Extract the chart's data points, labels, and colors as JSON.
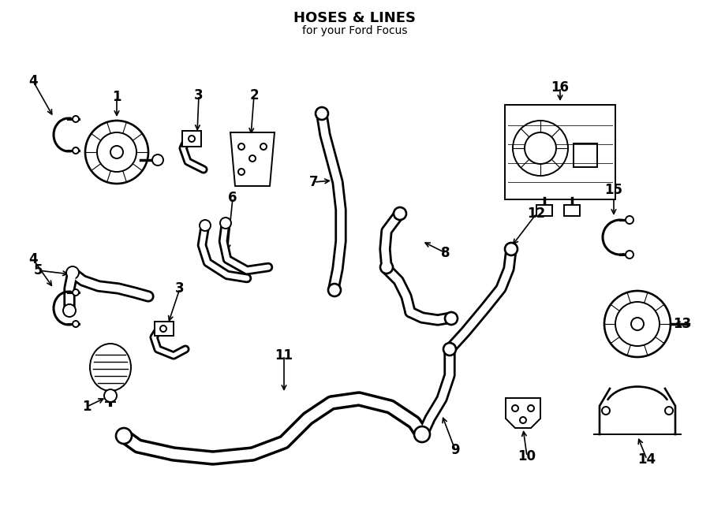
{
  "title": "HOSES & LINES",
  "subtitle": "for your Ford Focus",
  "bg_color": "#ffffff",
  "line_color": "#000000",
  "fig_width": 9.0,
  "fig_height": 6.61,
  "dpi": 100
}
